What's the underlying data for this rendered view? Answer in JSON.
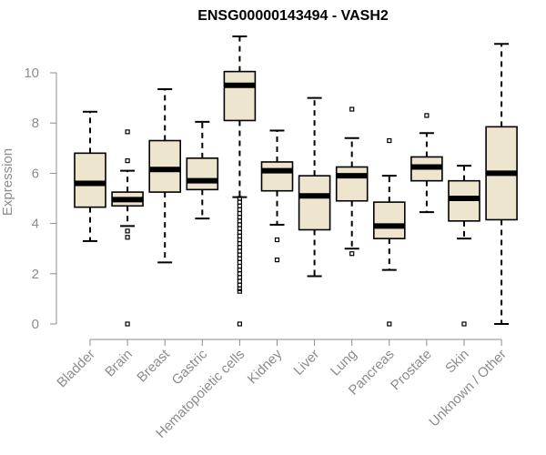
{
  "chart_data": {
    "type": "boxplot",
    "title": "ENSG00000143494 - VASH2",
    "xlabel": "",
    "ylabel": "Expression",
    "ylim": [
      0,
      11.5
    ],
    "yticks": [
      0,
      2,
      4,
      6,
      8,
      10
    ],
    "grid": false,
    "box_fill": "#ede5cd",
    "categories": [
      "Bladder",
      "Brain",
      "Breast",
      "Gastric",
      "Hematopoietic cells",
      "Kidney",
      "Liver",
      "Lung",
      "Pancreas",
      "Prostate",
      "Skin",
      "Unknown / Other"
    ],
    "boxes": [
      {
        "category": "Bladder",
        "whisker_low": 3.3,
        "q1": 4.65,
        "median": 5.6,
        "q3": 6.8,
        "whisker_high": 8.45,
        "outliers": []
      },
      {
        "category": "Brain",
        "whisker_low": 3.9,
        "q1": 4.7,
        "median": 4.95,
        "q3": 5.25,
        "whisker_high": 6.1,
        "outliers": [
          3.45,
          3.7,
          6.5,
          7.65,
          0.0
        ]
      },
      {
        "category": "Breast",
        "whisker_low": 2.45,
        "q1": 5.25,
        "median": 6.15,
        "q3": 7.3,
        "whisker_high": 9.35,
        "outliers": []
      },
      {
        "category": "Gastric",
        "whisker_low": 4.2,
        "q1": 5.35,
        "median": 5.7,
        "q3": 6.6,
        "whisker_high": 8.05,
        "outliers": []
      },
      {
        "category": "Hematopoietic cells",
        "whisker_low": 5.05,
        "q1": 8.1,
        "median": 9.5,
        "q3": 10.05,
        "whisker_high": 11.45,
        "outliers": [
          5.0,
          4.85,
          4.7,
          4.55,
          4.4,
          4.25,
          4.1,
          3.95,
          3.8,
          3.65,
          3.5,
          3.35,
          3.2,
          3.05,
          2.9,
          2.75,
          2.6,
          2.45,
          2.3,
          2.15,
          2.0,
          1.85,
          1.7,
          1.55,
          1.4,
          1.3,
          0.0
        ]
      },
      {
        "category": "Kidney",
        "whisker_low": 3.95,
        "q1": 5.3,
        "median": 6.1,
        "q3": 6.45,
        "whisker_high": 7.7,
        "outliers": [
          3.35,
          2.55
        ]
      },
      {
        "category": "Liver",
        "whisker_low": 1.9,
        "q1": 3.75,
        "median": 5.1,
        "q3": 5.9,
        "whisker_high": 9.0,
        "outliers": []
      },
      {
        "category": "Lung",
        "whisker_low": 3.0,
        "q1": 4.9,
        "median": 5.9,
        "q3": 6.25,
        "whisker_high": 7.4,
        "outliers": [
          2.8,
          8.55
        ]
      },
      {
        "category": "Pancreas",
        "whisker_low": 2.15,
        "q1": 3.4,
        "median": 3.9,
        "q3": 4.85,
        "whisker_high": 5.9,
        "outliers": [
          7.3,
          0.0
        ]
      },
      {
        "category": "Prostate",
        "whisker_low": 4.45,
        "q1": 5.7,
        "median": 6.25,
        "q3": 6.65,
        "whisker_high": 7.6,
        "outliers": [
          8.3
        ]
      },
      {
        "category": "Skin",
        "whisker_low": 3.4,
        "q1": 4.1,
        "median": 5.0,
        "q3": 5.7,
        "whisker_high": 6.3,
        "outliers": [
          0.0
        ]
      },
      {
        "category": "Unknown / Other",
        "whisker_low": 0.0,
        "q1": 4.15,
        "median": 6.0,
        "q3": 7.85,
        "whisker_high": 11.15,
        "outliers": []
      }
    ]
  }
}
